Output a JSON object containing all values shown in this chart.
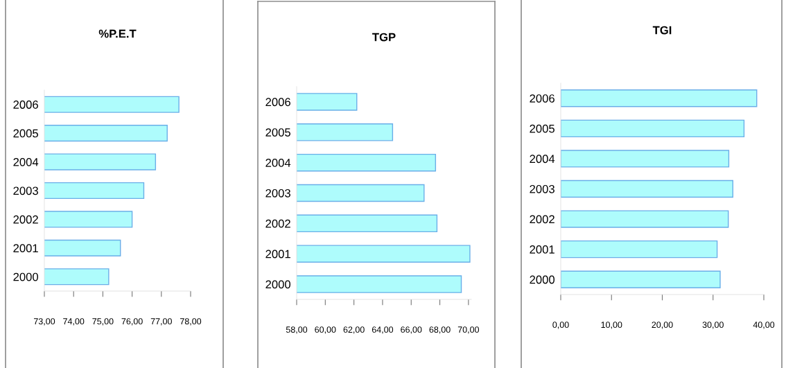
{
  "chart_data": [
    {
      "type": "bar",
      "orientation": "horizontal",
      "title": "%P.E.T",
      "categories": [
        "2006",
        "2005",
        "2004",
        "2003",
        "2002",
        "2001",
        "2000"
      ],
      "values": [
        77.6,
        77.2,
        76.8,
        76.4,
        76.0,
        75.6,
        75.2
      ],
      "color": "#aefcfc",
      "xlim": [
        73,
        78
      ],
      "xticks": [
        {
          "value": 73,
          "label": "73,00"
        },
        {
          "value": 74,
          "label": "74,00"
        },
        {
          "value": 75,
          "label": "75,00"
        },
        {
          "value": 76,
          "label": "76,00"
        },
        {
          "value": 77,
          "label": "77,00"
        },
        {
          "value": 78,
          "label": "78,00"
        }
      ],
      "grid": false,
      "legend": false
    },
    {
      "type": "bar",
      "orientation": "horizontal",
      "title": "TGP",
      "categories": [
        "2006",
        "2005",
        "2004",
        "2003",
        "2002",
        "2001",
        "2000"
      ],
      "values": [
        62.2,
        64.7,
        67.7,
        66.9,
        67.8,
        70.1,
        69.5
      ],
      "color": "#aefcfc",
      "xlim": [
        58,
        70.2
      ],
      "xticks": [
        {
          "value": 58,
          "label": "58,00"
        },
        {
          "value": 60,
          "label": "60,00"
        },
        {
          "value": 62,
          "label": "62,00"
        },
        {
          "value": 64,
          "label": "64,00"
        },
        {
          "value": 66,
          "label": "66,00"
        },
        {
          "value": 68,
          "label": "68,00"
        },
        {
          "value": 70,
          "label": "70,00"
        }
      ],
      "grid": false,
      "legend": false
    },
    {
      "type": "bar",
      "orientation": "horizontal",
      "title": "TGI",
      "categories": [
        "2006",
        "2005",
        "2004",
        "2003",
        "2002",
        "2001",
        "2000"
      ],
      "values": [
        38.6,
        36.1,
        33.1,
        33.9,
        33.0,
        30.8,
        31.4
      ],
      "color": "#aefcfc",
      "xlim": [
        0,
        40
      ],
      "xticks": [
        {
          "value": 0,
          "label": "0,00"
        },
        {
          "value": 10,
          "label": "10,00"
        },
        {
          "value": 20,
          "label": "20,00"
        },
        {
          "value": 30,
          "label": "30,00"
        },
        {
          "value": 40,
          "label": "40,00"
        }
      ],
      "grid": false,
      "legend": false
    }
  ]
}
